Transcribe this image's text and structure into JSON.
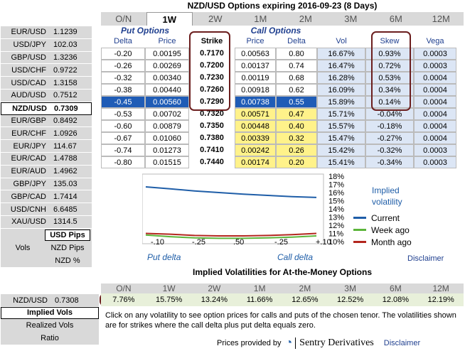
{
  "title": "NZD/USD Options expiring 2016-09-23 (8 Days)",
  "tenors": [
    "O/N",
    "1W",
    "2W",
    "1M",
    "2M",
    "3M",
    "6M",
    "12M"
  ],
  "active_tenor": "1W",
  "rates": [
    {
      "pair": "EUR/USD",
      "value": "1.1239"
    },
    {
      "pair": "USD/JPY",
      "value": "102.03"
    },
    {
      "pair": "GBP/USD",
      "value": "1.3236"
    },
    {
      "pair": "USD/CHF",
      "value": "0.9722"
    },
    {
      "pair": "USD/CAD",
      "value": "1.3158"
    },
    {
      "pair": "AUD/USD",
      "value": "0.7512"
    },
    {
      "pair": "NZD/USD",
      "value": "0.7309"
    },
    {
      "pair": "EUR/GBP",
      "value": "0.8492"
    },
    {
      "pair": "EUR/CHF",
      "value": "1.0926"
    },
    {
      "pair": "EUR/JPY",
      "value": "114.67"
    },
    {
      "pair": "EUR/CAD",
      "value": "1.4788"
    },
    {
      "pair": "EUR/AUD",
      "value": "1.4962"
    },
    {
      "pair": "GBP/JPY",
      "value": "135.03"
    },
    {
      "pair": "GBP/CAD",
      "value": "1.7414"
    },
    {
      "pair": "USD/CNH",
      "value": "6.6485"
    },
    {
      "pair": "XAU/USD",
      "value": "1314.5"
    }
  ],
  "units": {
    "usd_pips": "USD Pips",
    "vols_label": "Vols",
    "nzd_pips": "NZD Pips",
    "nzd_pct": "NZD %"
  },
  "table": {
    "put_header": "Put Options",
    "call_header": "Call Options",
    "columns": {
      "delta": "Delta",
      "price": "Price",
      "strike": "Strike",
      "cprice": "Price",
      "cdelta": "Delta",
      "vol": "Vol",
      "skew": "Skew",
      "vega": "Vega"
    },
    "rows": [
      {
        "put_delta": "-0.20",
        "put_price": "0.00195",
        "strike": "0.7170",
        "call_price": "0.00563",
        "call_delta": "0.80",
        "vol": "16.67%",
        "skew": "0.93%",
        "vega": "0.0003"
      },
      {
        "put_delta": "-0.26",
        "put_price": "0.00269",
        "strike": "0.7200",
        "call_price": "0.00137",
        "call_delta": "0.74",
        "vol": "16.47%",
        "skew": "0.72%",
        "vega": "0.0003"
      },
      {
        "put_delta": "-0.32",
        "put_price": "0.00340",
        "strike": "0.7230",
        "call_price": "0.00119",
        "call_delta": "0.68",
        "vol": "16.28%",
        "skew": "0.53%",
        "vega": "0.0004"
      },
      {
        "put_delta": "-0.38",
        "put_price": "0.00440",
        "strike": "0.7260",
        "call_price": "0.00918",
        "call_delta": "0.62",
        "vol": "16.09%",
        "skew": "0.34%",
        "vega": "0.0004"
      },
      {
        "put_delta": "-0.45",
        "put_price": "0.00560",
        "strike": "0.7290",
        "call_price": "0.00738",
        "call_delta": "0.55",
        "vol": "15.89%",
        "skew": "0.14%",
        "vega": "0.0004"
      },
      {
        "put_delta": "-0.53",
        "put_price": "0.00702",
        "strike": "0.7320",
        "call_price": "0.00571",
        "call_delta": "0.47",
        "vol": "15.71%",
        "skew": "-0.04%",
        "vega": "0.0004"
      },
      {
        "put_delta": "-0.60",
        "put_price": "0.00879",
        "strike": "0.7350",
        "call_price": "0.00448",
        "call_delta": "0.40",
        "vol": "15.57%",
        "skew": "-0.18%",
        "vega": "0.0004"
      },
      {
        "put_delta": "-0.67",
        "put_price": "0.01060",
        "strike": "0.7380",
        "call_price": "0.00339",
        "call_delta": "0.32",
        "vol": "15.47%",
        "skew": "-0.27%",
        "vega": "0.0004"
      },
      {
        "put_delta": "-0.74",
        "put_price": "0.01273",
        "strike": "0.7410",
        "call_price": "0.00242",
        "call_delta": "0.26",
        "vol": "15.42%",
        "skew": "-0.32%",
        "vega": "0.0003"
      },
      {
        "put_delta": "-0.80",
        "put_price": "0.01515",
        "strike": "0.7440",
        "call_price": "0.00174",
        "call_delta": "0.20",
        "vol": "15.41%",
        "skew": "-0.34%",
        "vega": "0.0003"
      }
    ]
  },
  "chart_data": {
    "type": "line",
    "x_tick_labels": [
      "-.10",
      "-.25",
      ".50",
      "-.25",
      "+.10"
    ],
    "xlabel_left": "Put delta",
    "xlabel_right": "Call delta",
    "y_tick_labels": [
      "18%",
      "17%",
      "16%",
      "15%",
      "14%",
      "13%",
      "12%",
      "11%",
      "10%"
    ],
    "ylim": [
      10,
      18
    ],
    "series": [
      {
        "name": "Current",
        "color": "#1f5ea8",
        "values": [
          16.7,
          16.45,
          16.2,
          16.0,
          15.8,
          15.65,
          15.5,
          15.4
        ]
      },
      {
        "name": "Week ago",
        "color": "#5cb53a",
        "values": [
          10.8,
          10.6,
          10.45,
          10.4,
          10.4,
          10.45,
          10.55,
          10.7
        ]
      },
      {
        "name": "Month ago",
        "color": "#b3261e",
        "values": [
          11.0,
          10.9,
          10.75,
          10.7,
          10.7,
          10.75,
          10.85,
          11.0
        ]
      }
    ],
    "legend_title": [
      "Implied",
      "volatility"
    ]
  },
  "disclaimer": "Disclaimer",
  "atm": {
    "title": "Implied Volatilities for At-the-Money Options",
    "pair": "NZD/USD",
    "rate": "0.7308",
    "tenors": [
      "O/N",
      "1W",
      "2W",
      "1M",
      "2M",
      "3M",
      "6M",
      "12M"
    ],
    "values": [
      "7.76%",
      "15.75%",
      "13.24%",
      "11.66%",
      "12.65%",
      "12.52%",
      "12.08%",
      "12.19%"
    ],
    "implied_vols": "Implied Vols",
    "realized_vols": "Realized Vols",
    "ratio": "Ratio",
    "note": "Click on any volatility to see option prices for calls and puts of the chosen tenor. The volatilities shown are for strikes where the call delta plus put delta equals zero.",
    "provided_by": "Prices provided by",
    "provider": "Sentry Derivatives"
  }
}
